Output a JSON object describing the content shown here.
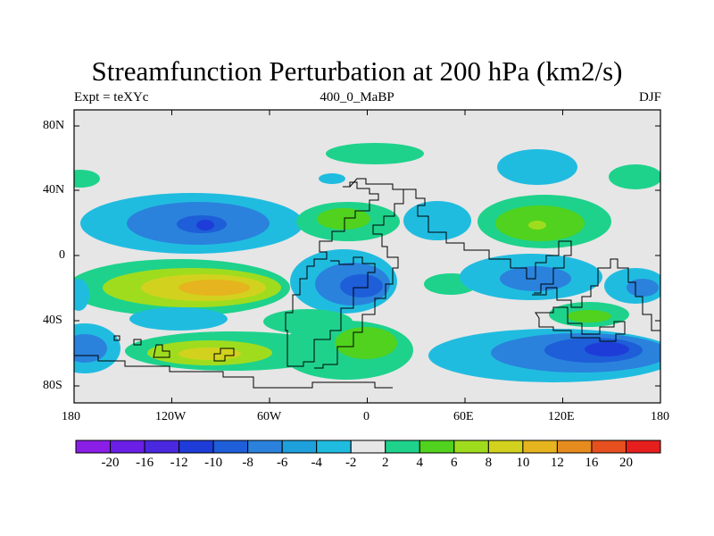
{
  "header": {
    "title": "Streamfunction Perturbation at 200 hPa (km2/s)",
    "left_label": "Expt = teXYc",
    "center_label": "400_0_MaBP",
    "right_label": "DJF"
  },
  "map": {
    "lon_ticks": [
      "180",
      "120W",
      "60W",
      "0",
      "60E",
      "120E",
      "180"
    ],
    "lat_ticks": [
      "80N",
      "40N",
      "0",
      "40S",
      "80S"
    ],
    "background_color": "#e6e6e6"
  },
  "colorbar": {
    "labels": [
      "-20",
      "-16",
      "-12",
      "-10",
      "-8",
      "-6",
      "-4",
      "-2",
      "2",
      "4",
      "6",
      "8",
      "10",
      "12",
      "16",
      "20"
    ],
    "colors": [
      "#8a1ee6",
      "#6a1ee6",
      "#4a28e0",
      "#1e3cd8",
      "#1e5ed8",
      "#2a82dc",
      "#1ea0dc",
      "#20bce0",
      "#e6e6e6",
      "#1ed28c",
      "#50d21e",
      "#a0dc1e",
      "#d2d21e",
      "#e6b41e",
      "#e68c1e",
      "#e6501e",
      "#e61e1e"
    ]
  }
}
